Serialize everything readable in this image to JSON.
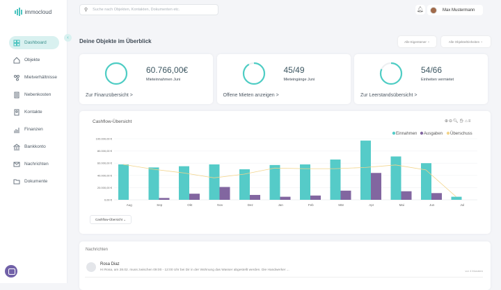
{
  "app": {
    "name": "immocloud"
  },
  "sidebar": {
    "items": [
      {
        "label": "Dashboard",
        "icon": "dashboard-icon"
      },
      {
        "label": "Objekte",
        "icon": "house-icon"
      },
      {
        "label": "Mietverhältnisse",
        "icon": "tenants-icon"
      },
      {
        "label": "Nebenkosten",
        "icon": "calculator-icon"
      },
      {
        "label": "Kontakte",
        "icon": "contacts-icon"
      },
      {
        "label": "Finanzen",
        "icon": "chart-icon"
      },
      {
        "label": "Bankkonto",
        "icon": "bank-icon"
      },
      {
        "label": "Nachrichten",
        "icon": "mail-icon"
      },
      {
        "label": "Dokumente",
        "icon": "folder-icon"
      }
    ]
  },
  "search": {
    "placeholder": "Suche nach Objekten, Kontakten, Dokumenten etc."
  },
  "header": {
    "user": "Max Mustermann"
  },
  "main": {
    "title": "Deine Objekte im Überblick",
    "filters": [
      "Alle Eigentümer",
      "Alle Objekte/Einheiten"
    ],
    "kpis": [
      {
        "value": "60.766,00€",
        "label": "Mieteinnahmen Juni",
        "link": "Zur Finanzübersicht >",
        "fraction": 1.0
      },
      {
        "value": "45/49",
        "label": "Mieteingänge Juni",
        "link": "Offene Mieten anzeigen >",
        "fraction": 0.918
      },
      {
        "value": "54/66",
        "label": "Einheiten vermietet",
        "link": "Zur Leerstandsübersicht >",
        "fraction": 0.818
      }
    ]
  },
  "colors": {
    "accent": "#4ecdc4",
    "einnahmen": "#55cbc8",
    "ausgaben": "#8266a0",
    "ueberschuss": "#f2d48a"
  },
  "chart_data": {
    "type": "bar",
    "title": "Cashflow-Übersicht",
    "selector": "Cashflow-Übersicht",
    "categories": [
      "Aug",
      "Sep",
      "Okt",
      "Nov",
      "Dez",
      "Jan",
      "Feb",
      "Mär",
      "Apr",
      "Mai",
      "Jun",
      "Jul"
    ],
    "yticks": [
      "0,00 €",
      "20.000,00 €",
      "40.000,00 €",
      "60.000,00 €",
      "80.000,00 €",
      "100.000,00 €"
    ],
    "ylim": [
      0,
      100000
    ],
    "grid": true,
    "legend_position": "top-right",
    "series": [
      {
        "name": "Einnahmen",
        "type": "bar",
        "values": [
          58000,
          53000,
          55000,
          58000,
          50000,
          57000,
          58000,
          66000,
          97000,
          71000,
          60000,
          5000
        ]
      },
      {
        "name": "Ausgaben",
        "type": "bar",
        "values": [
          0,
          3000,
          10000,
          21000,
          8000,
          5000,
          7000,
          15000,
          44000,
          14000,
          11000,
          0
        ]
      },
      {
        "name": "Überschuss",
        "type": "line",
        "values": [
          58000,
          50000,
          44000,
          36000,
          42000,
          52000,
          51000,
          51000,
          53000,
          57000,
          49000,
          5000
        ]
      }
    ]
  },
  "messages": {
    "title": "Nachrichten",
    "items": [
      {
        "name": "Rosa Diaz",
        "text": "Hi Rosa,  am 28.02. muss zwischen 09:00 - 12:00 Uhr bei Dir in der Wohnung das Wasser abgestellt werden. Die Handwerker ...",
        "time": "vor 4 Monaten"
      }
    ]
  }
}
